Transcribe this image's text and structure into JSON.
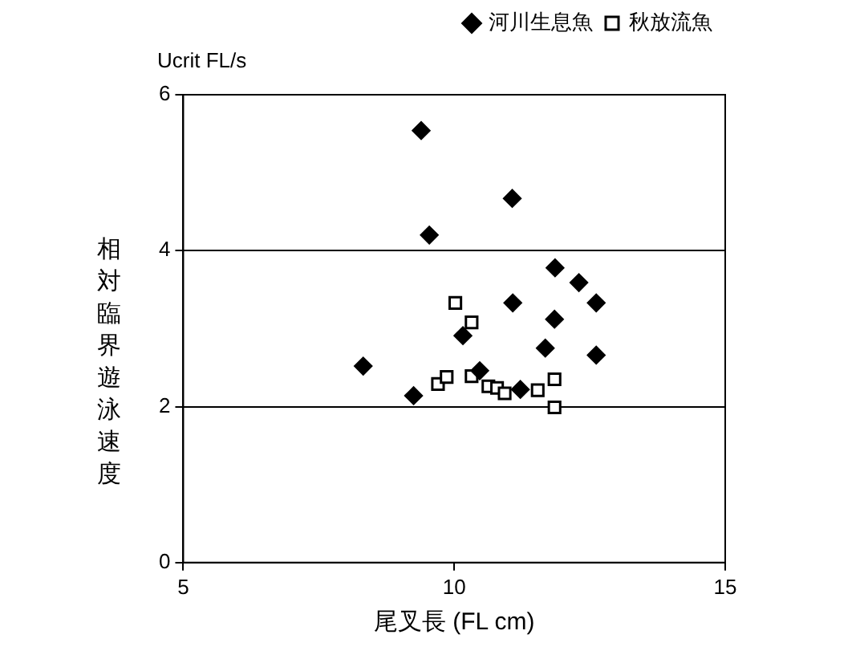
{
  "chart_data": {
    "type": "scatter",
    "xlabel": "尾叉長 (FL cm)",
    "ylabel": "相対臨界遊泳速度",
    "annotations": [
      "Ucrit FL/s"
    ],
    "xlim": [
      5,
      15
    ],
    "xticks": [
      5,
      10,
      15
    ],
    "ylim": [
      0,
      6
    ],
    "yticks": [
      0,
      2,
      4,
      6
    ],
    "grid": "y",
    "legend": "top right",
    "series": [
      {
        "name": "河川生息魚",
        "color": "#000000",
        "marker": "diamond",
        "x": [
          9.39,
          9.54,
          11.07,
          11.86,
          12.3,
          12.62,
          11.08,
          11.85,
          10.16,
          11.68,
          12.62,
          8.32,
          10.47,
          9.25,
          11.22
        ],
        "values": [
          5.54,
          4.2,
          4.67,
          3.78,
          3.59,
          3.33,
          3.33,
          3.12,
          2.91,
          2.75,
          2.66,
          2.52,
          2.46,
          2.14,
          2.22
        ]
      },
      {
        "name": "秋放流魚",
        "color": "#000000",
        "marker": "square",
        "x": [
          10.02,
          10.32,
          9.7,
          9.86,
          10.32,
          10.63,
          10.79,
          10.93,
          11.54,
          11.85,
          11.85
        ],
        "values": [
          3.33,
          3.08,
          2.29,
          2.38,
          2.39,
          2.26,
          2.24,
          2.17,
          2.21,
          2.35,
          1.99
        ]
      }
    ]
  }
}
